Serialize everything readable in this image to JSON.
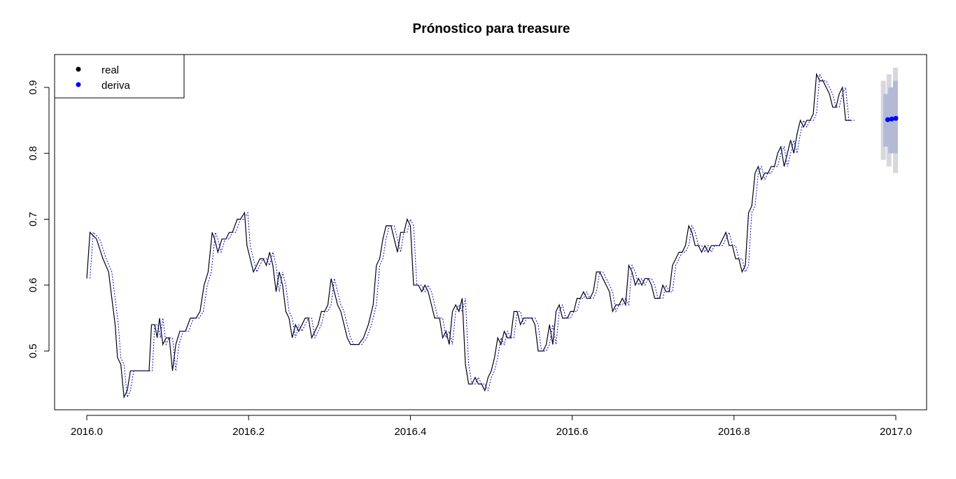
{
  "chart_data": {
    "type": "line",
    "title": "Prónostico para treasure",
    "xlabel": "",
    "ylabel": "",
    "xlim": [
      2016.0,
      2017.0
    ],
    "ylim": [
      0.43,
      0.93
    ],
    "x_ticks": [
      "2016.0",
      "2016.2",
      "2016.4",
      "2016.6",
      "2016.8",
      "2017.0"
    ],
    "y_ticks": [
      "0.5",
      "0.6",
      "0.7",
      "0.8",
      "0.9"
    ],
    "legend": {
      "position": "top-left",
      "entries": [
        {
          "label": "real",
          "color": "#000000"
        },
        {
          "label": "deriva",
          "color": "#0000ff"
        }
      ]
    },
    "colors": {
      "real": "#000000",
      "fitted": "#0000ff",
      "forecast_point": "#0000ff",
      "band80": "#b3bad6",
      "band95": "#d7d7dc"
    },
    "series": [
      {
        "name": "real",
        "style": "solid",
        "color": "#000000",
        "points": [
          [
            2016.0,
            0.61
          ],
          [
            2016.004,
            0.68
          ],
          [
            2016.012,
            0.67
          ],
          [
            2016.02,
            0.64
          ],
          [
            2016.027,
            0.62
          ],
          [
            2016.031,
            0.58
          ],
          [
            2016.035,
            0.54
          ],
          [
            2016.038,
            0.49
          ],
          [
            2016.042,
            0.48
          ],
          [
            2016.046,
            0.43
          ],
          [
            2016.05,
            0.44
          ],
          [
            2016.054,
            0.47
          ],
          [
            2016.06,
            0.47
          ],
          [
            2016.065,
            0.47
          ],
          [
            2016.07,
            0.47
          ],
          [
            2016.077,
            0.47
          ],
          [
            2016.08,
            0.54
          ],
          [
            2016.084,
            0.54
          ],
          [
            2016.087,
            0.52
          ],
          [
            2016.09,
            0.55
          ],
          [
            2016.094,
            0.51
          ],
          [
            2016.098,
            0.52
          ],
          [
            2016.102,
            0.52
          ],
          [
            2016.106,
            0.47
          ],
          [
            2016.11,
            0.51
          ],
          [
            2016.115,
            0.53
          ],
          [
            2016.122,
            0.53
          ],
          [
            2016.128,
            0.55
          ],
          [
            2016.135,
            0.55
          ],
          [
            2016.14,
            0.56
          ],
          [
            2016.145,
            0.6
          ],
          [
            2016.15,
            0.62
          ],
          [
            2016.155,
            0.68
          ],
          [
            2016.158,
            0.67
          ],
          [
            2016.162,
            0.65
          ],
          [
            2016.167,
            0.67
          ],
          [
            2016.172,
            0.67
          ],
          [
            2016.176,
            0.68
          ],
          [
            2016.18,
            0.68
          ],
          [
            2016.186,
            0.7
          ],
          [
            2016.19,
            0.7
          ],
          [
            2016.195,
            0.71
          ],
          [
            2016.198,
            0.66
          ],
          [
            2016.202,
            0.64
          ],
          [
            2016.206,
            0.62
          ],
          [
            2016.21,
            0.63
          ],
          [
            2016.214,
            0.64
          ],
          [
            2016.218,
            0.64
          ],
          [
            2016.222,
            0.63
          ],
          [
            2016.226,
            0.65
          ],
          [
            2016.23,
            0.63
          ],
          [
            2016.234,
            0.59
          ],
          [
            2016.238,
            0.62
          ],
          [
            2016.242,
            0.6
          ],
          [
            2016.246,
            0.56
          ],
          [
            2016.25,
            0.55
          ],
          [
            2016.254,
            0.52
          ],
          [
            2016.258,
            0.54
          ],
          [
            2016.262,
            0.53
          ],
          [
            2016.266,
            0.54
          ],
          [
            2016.27,
            0.55
          ],
          [
            2016.274,
            0.55
          ],
          [
            2016.278,
            0.52
          ],
          [
            2016.282,
            0.53
          ],
          [
            2016.286,
            0.54
          ],
          [
            2016.29,
            0.56
          ],
          [
            2016.294,
            0.56
          ],
          [
            2016.298,
            0.57
          ],
          [
            2016.302,
            0.61
          ],
          [
            2016.306,
            0.59
          ],
          [
            2016.31,
            0.57
          ],
          [
            2016.314,
            0.56
          ],
          [
            2016.318,
            0.54
          ],
          [
            2016.322,
            0.52
          ],
          [
            2016.326,
            0.51
          ],
          [
            2016.33,
            0.51
          ],
          [
            2016.336,
            0.51
          ],
          [
            2016.342,
            0.52
          ],
          [
            2016.348,
            0.54
          ],
          [
            2016.354,
            0.57
          ],
          [
            2016.358,
            0.63
          ],
          [
            2016.362,
            0.64
          ],
          [
            2016.366,
            0.67
          ],
          [
            2016.37,
            0.69
          ],
          [
            2016.376,
            0.69
          ],
          [
            2016.38,
            0.67
          ],
          [
            2016.384,
            0.65
          ],
          [
            2016.388,
            0.68
          ],
          [
            2016.392,
            0.68
          ],
          [
            2016.396,
            0.7
          ],
          [
            2016.4,
            0.69
          ],
          [
            2016.404,
            0.6
          ],
          [
            2016.41,
            0.6
          ],
          [
            2016.414,
            0.59
          ],
          [
            2016.418,
            0.6
          ],
          [
            2016.422,
            0.59
          ],
          [
            2016.426,
            0.57
          ],
          [
            2016.43,
            0.55
          ],
          [
            2016.436,
            0.55
          ],
          [
            2016.44,
            0.52
          ],
          [
            2016.444,
            0.53
          ],
          [
            2016.448,
            0.51
          ],
          [
            2016.452,
            0.56
          ],
          [
            2016.456,
            0.57
          ],
          [
            2016.46,
            0.56
          ],
          [
            2016.464,
            0.58
          ],
          [
            2016.468,
            0.48
          ],
          [
            2016.472,
            0.45
          ],
          [
            2016.476,
            0.45
          ],
          [
            2016.48,
            0.46
          ],
          [
            2016.484,
            0.45
          ],
          [
            2016.488,
            0.45
          ],
          [
            2016.492,
            0.44
          ],
          [
            2016.496,
            0.46
          ],
          [
            2016.5,
            0.47
          ],
          [
            2016.504,
            0.49
          ],
          [
            2016.508,
            0.52
          ],
          [
            2016.512,
            0.51
          ],
          [
            2016.516,
            0.53
          ],
          [
            2016.52,
            0.52
          ],
          [
            2016.524,
            0.52
          ],
          [
            2016.528,
            0.56
          ],
          [
            2016.532,
            0.56
          ],
          [
            2016.536,
            0.54
          ],
          [
            2016.54,
            0.55
          ],
          [
            2016.546,
            0.55
          ],
          [
            2016.55,
            0.55
          ],
          [
            2016.554,
            0.54
          ],
          [
            2016.558,
            0.5
          ],
          [
            2016.564,
            0.5
          ],
          [
            2016.568,
            0.51
          ],
          [
            2016.572,
            0.54
          ],
          [
            2016.576,
            0.51
          ],
          [
            2016.58,
            0.56
          ],
          [
            2016.584,
            0.57
          ],
          [
            2016.588,
            0.55
          ],
          [
            2016.594,
            0.55
          ],
          [
            2016.598,
            0.56
          ],
          [
            2016.602,
            0.56
          ],
          [
            2016.606,
            0.58
          ],
          [
            2016.61,
            0.58
          ],
          [
            2016.614,
            0.59
          ],
          [
            2016.618,
            0.58
          ],
          [
            2016.622,
            0.58
          ],
          [
            2016.626,
            0.59
          ],
          [
            2016.63,
            0.62
          ],
          [
            2016.634,
            0.62
          ],
          [
            2016.638,
            0.61
          ],
          [
            2016.642,
            0.6
          ],
          [
            2016.646,
            0.59
          ],
          [
            2016.65,
            0.56
          ],
          [
            2016.654,
            0.57
          ],
          [
            2016.658,
            0.57
          ],
          [
            2016.662,
            0.58
          ],
          [
            2016.666,
            0.57
          ],
          [
            2016.67,
            0.63
          ],
          [
            2016.674,
            0.62
          ],
          [
            2016.678,
            0.6
          ],
          [
            2016.682,
            0.61
          ],
          [
            2016.686,
            0.6
          ],
          [
            2016.69,
            0.61
          ],
          [
            2016.694,
            0.61
          ],
          [
            2016.698,
            0.6
          ],
          [
            2016.702,
            0.58
          ],
          [
            2016.708,
            0.58
          ],
          [
            2016.712,
            0.6
          ],
          [
            2016.716,
            0.59
          ],
          [
            2016.72,
            0.59
          ],
          [
            2016.724,
            0.63
          ],
          [
            2016.728,
            0.64
          ],
          [
            2016.732,
            0.65
          ],
          [
            2016.736,
            0.65
          ],
          [
            2016.74,
            0.66
          ],
          [
            2016.744,
            0.69
          ],
          [
            2016.748,
            0.68
          ],
          [
            2016.752,
            0.66
          ],
          [
            2016.756,
            0.66
          ],
          [
            2016.76,
            0.65
          ],
          [
            2016.764,
            0.66
          ],
          [
            2016.768,
            0.65
          ],
          [
            2016.772,
            0.66
          ],
          [
            2016.778,
            0.66
          ],
          [
            2016.782,
            0.66
          ],
          [
            2016.786,
            0.67
          ],
          [
            2016.79,
            0.68
          ],
          [
            2016.794,
            0.66
          ],
          [
            2016.798,
            0.66
          ],
          [
            2016.802,
            0.64
          ],
          [
            2016.806,
            0.64
          ],
          [
            2016.81,
            0.62
          ],
          [
            2016.814,
            0.63
          ],
          [
            2016.818,
            0.71
          ],
          [
            2016.822,
            0.72
          ],
          [
            2016.826,
            0.77
          ],
          [
            2016.83,
            0.78
          ],
          [
            2016.834,
            0.76
          ],
          [
            2016.838,
            0.77
          ],
          [
            2016.842,
            0.77
          ],
          [
            2016.846,
            0.78
          ],
          [
            2016.85,
            0.78
          ],
          [
            2016.854,
            0.8
          ],
          [
            2016.858,
            0.81
          ],
          [
            2016.862,
            0.78
          ],
          [
            2016.866,
            0.8
          ],
          [
            2016.87,
            0.82
          ],
          [
            2016.874,
            0.8
          ],
          [
            2016.878,
            0.83
          ],
          [
            2016.882,
            0.85
          ],
          [
            2016.886,
            0.84
          ],
          [
            2016.89,
            0.85
          ],
          [
            2016.894,
            0.85
          ],
          [
            2016.898,
            0.86
          ],
          [
            2016.902,
            0.92
          ],
          [
            2016.906,
            0.91
          ],
          [
            2016.91,
            0.91
          ],
          [
            2016.914,
            0.9
          ],
          [
            2016.918,
            0.89
          ],
          [
            2016.922,
            0.87
          ],
          [
            2016.926,
            0.87
          ],
          [
            2016.93,
            0.89
          ],
          [
            2016.934,
            0.9
          ],
          [
            2016.938,
            0.85
          ],
          [
            2016.945,
            0.85
          ]
        ]
      },
      {
        "name": "deriva",
        "style": "dotted",
        "color": "#0000ff",
        "shift_x": 0.004,
        "note_from_real": true
      },
      {
        "name": "deriva",
        "style": "forecast",
        "color": "#0000ff",
        "points": [
          [
            2016.99,
            0.851
          ],
          [
            2016.995,
            0.852
          ],
          [
            2017.0,
            0.853
          ]
        ],
        "band80": [
          [
            2016.988,
            0.81,
            0.89
          ],
          [
            2016.994,
            0.8,
            0.9
          ],
          [
            2017.0,
            0.8,
            0.91
          ]
        ],
        "band95": [
          [
            2016.985,
            0.79,
            0.91
          ],
          [
            2016.992,
            0.78,
            0.92
          ],
          [
            2017.0,
            0.77,
            0.93
          ]
        ]
      }
    ]
  }
}
